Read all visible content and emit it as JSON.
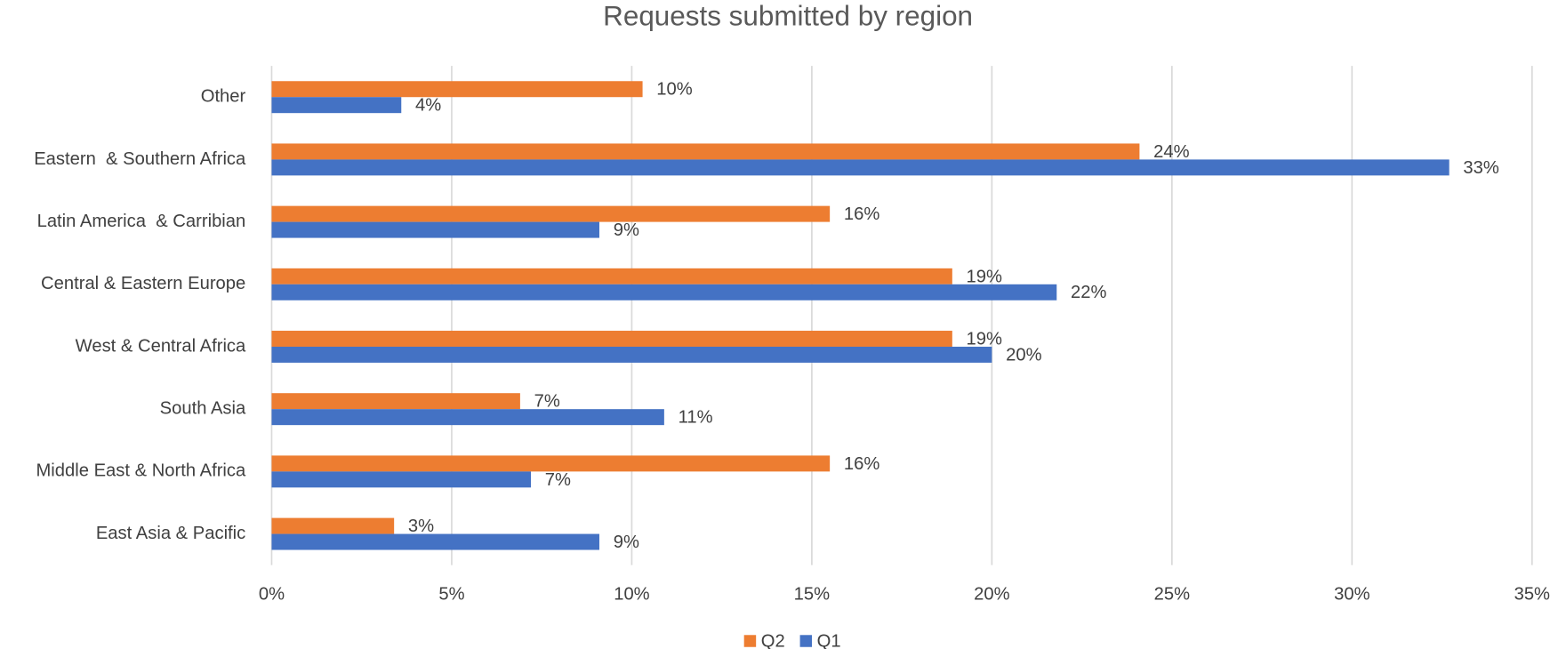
{
  "chart_data": {
    "type": "hbar",
    "title": "Requests submitted by region",
    "categories": [
      "Other",
      "Eastern  & Southern Africa",
      "Latin America  & Carribian",
      "Central & Eastern Europe",
      "West & Central Africa",
      "South Asia",
      "Middle East & North Africa",
      "East Asia & Pacific"
    ],
    "series": [
      {
        "name": "Q2",
        "color": "#ed7d31",
        "values": [
          10.3,
          24.1,
          15.5,
          18.9,
          18.9,
          6.9,
          15.5,
          3.4
        ],
        "value_labels": [
          "10%",
          "24%",
          "16%",
          "19%",
          "19%",
          "7%",
          "16%",
          "3%"
        ]
      },
      {
        "name": "Q1",
        "color": "#4472c4",
        "values": [
          3.6,
          32.7,
          9.1,
          21.8,
          20.0,
          10.9,
          7.2,
          9.1
        ],
        "value_labels": [
          "4%",
          "33%",
          "9%",
          "22%",
          "20%",
          "11%",
          "7%",
          "9%"
        ]
      }
    ],
    "xlim": [
      0,
      35
    ],
    "xticks": [
      {
        "value": 0,
        "label": "0%"
      },
      {
        "value": 5,
        "label": "5%"
      },
      {
        "value": 10,
        "label": "10%"
      },
      {
        "value": 15,
        "label": "15%"
      },
      {
        "value": 20,
        "label": "20%"
      },
      {
        "value": 25,
        "label": "25%"
      },
      {
        "value": 30,
        "label": "30%"
      },
      {
        "value": 35,
        "label": "35%"
      }
    ],
    "grid": true,
    "legend": "bottom"
  }
}
